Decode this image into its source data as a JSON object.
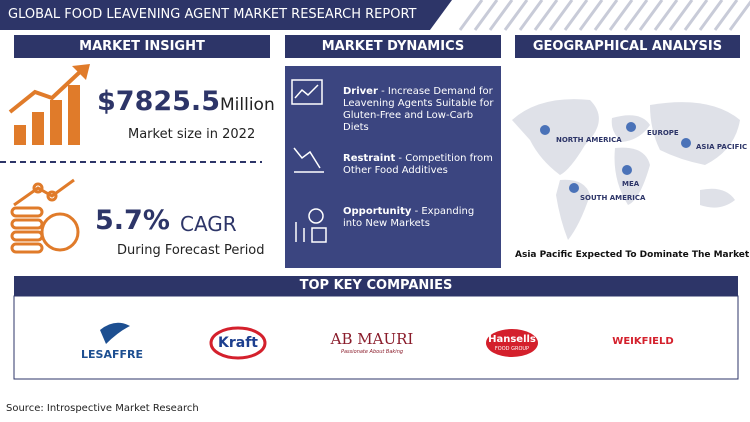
{
  "header": {
    "title": "GLOBAL FOOD LEAVENING AGENT MARKET RESEARCH REPORT"
  },
  "market_insight": {
    "heading": "MARKET INSIGHT",
    "size": "$7825.5",
    "size_unit": "Million",
    "size_label": "Market size in 2022",
    "cagr": "5.7%",
    "cagr_suffix": "CAGR",
    "cagr_label": "During Forecast Period"
  },
  "market_dynamics": {
    "heading": "MARKET DYNAMICS",
    "items": [
      {
        "label": "Driver",
        "text": "- Increase Demand for Leavening Agents Suitable for Gluten-Free and Low-Carb Diets"
      },
      {
        "label": "Restraint",
        "text": "- Competition from Other Food Additives"
      },
      {
        "label": "Opportunity",
        "text": "- Expanding into New Markets"
      }
    ]
  },
  "geographical_analysis": {
    "heading": "GEOGRAPHICAL ANALYSIS",
    "regions": [
      "NORTH AMERICA",
      "EUROPE",
      "ASIA PACIFIC",
      "MEA",
      "SOUTH AMERICA"
    ],
    "note": "Asia Pacific Expected To Dominate The Market"
  },
  "companies": {
    "heading": "TOP KEY COMPANIES",
    "logos": [
      {
        "name": "LESAFFRE"
      },
      {
        "name": "Kraft"
      },
      {
        "name": "AB MAURI",
        "tagline": "Passionate About Baking"
      },
      {
        "name": "Hansells",
        "tagline": "FOOD GROUP"
      },
      {
        "name": "WEIKFIELD"
      }
    ]
  },
  "source": "Source: Introspective Market Research"
}
